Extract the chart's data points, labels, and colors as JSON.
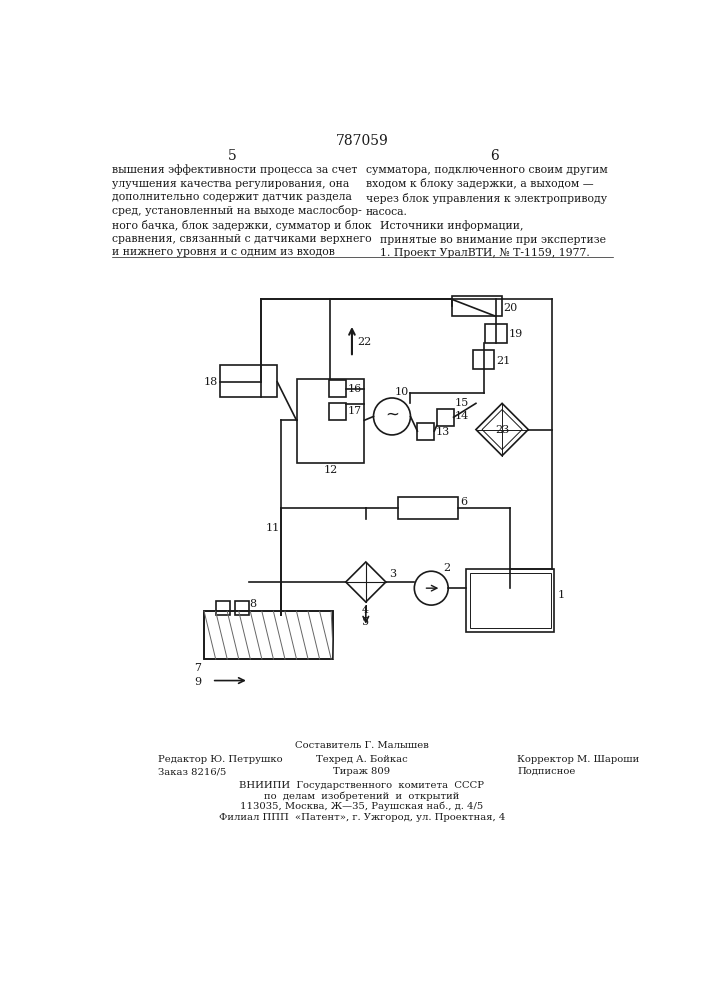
{
  "title": "787059",
  "page_left": "5",
  "page_right": "6",
  "text_left": "вышения эффективности процесса за счет\nулучшения качества регулирования, она\nдополнительно содержит датчик раздела\nсред, установленный на выходе маслосбор-\nного бачка, блок задержки, сумматор и блок\nсравнения, связанный с датчиками верхнего\nи нижнего уровня и с одним из входов",
  "text_right": "сумматора, подключенного своим другим\nвходом к блоку задержки, а выходом —\nчерез блок управления к электроприводу\nнасоса.\n    Источники информации,\n    принятые во внимание при экспертизе\n    1. Проект УралВТИ, № Т-1159, 1977.",
  "footer_line1_center": "Составитель Г. Малышев",
  "footer_line2_left": "Редактор Ю. Петрушко",
  "footer_line2_center": "Техред А. Бойкас",
  "footer_line2_right": "Корректор М. Шароши",
  "footer_line3_left": "Заказ 8216/5",
  "footer_line3_center": "Тираж 809",
  "footer_line3_right": "Подписное",
  "footer_vniip1": "ВНИИПИ  Государственного  комитета  СССР",
  "footer_vniip2": "по  делам  изобретений  и  открытий",
  "footer_vniip3": "113035, Москва, Ж—35, Раушская наб., д. 4/5",
  "footer_vniip4": "Филиал ППП  «Патент», г. Ужгород, ул. Проектная, 4",
  "bg_color": "#ffffff",
  "line_color": "#1a1a1a"
}
